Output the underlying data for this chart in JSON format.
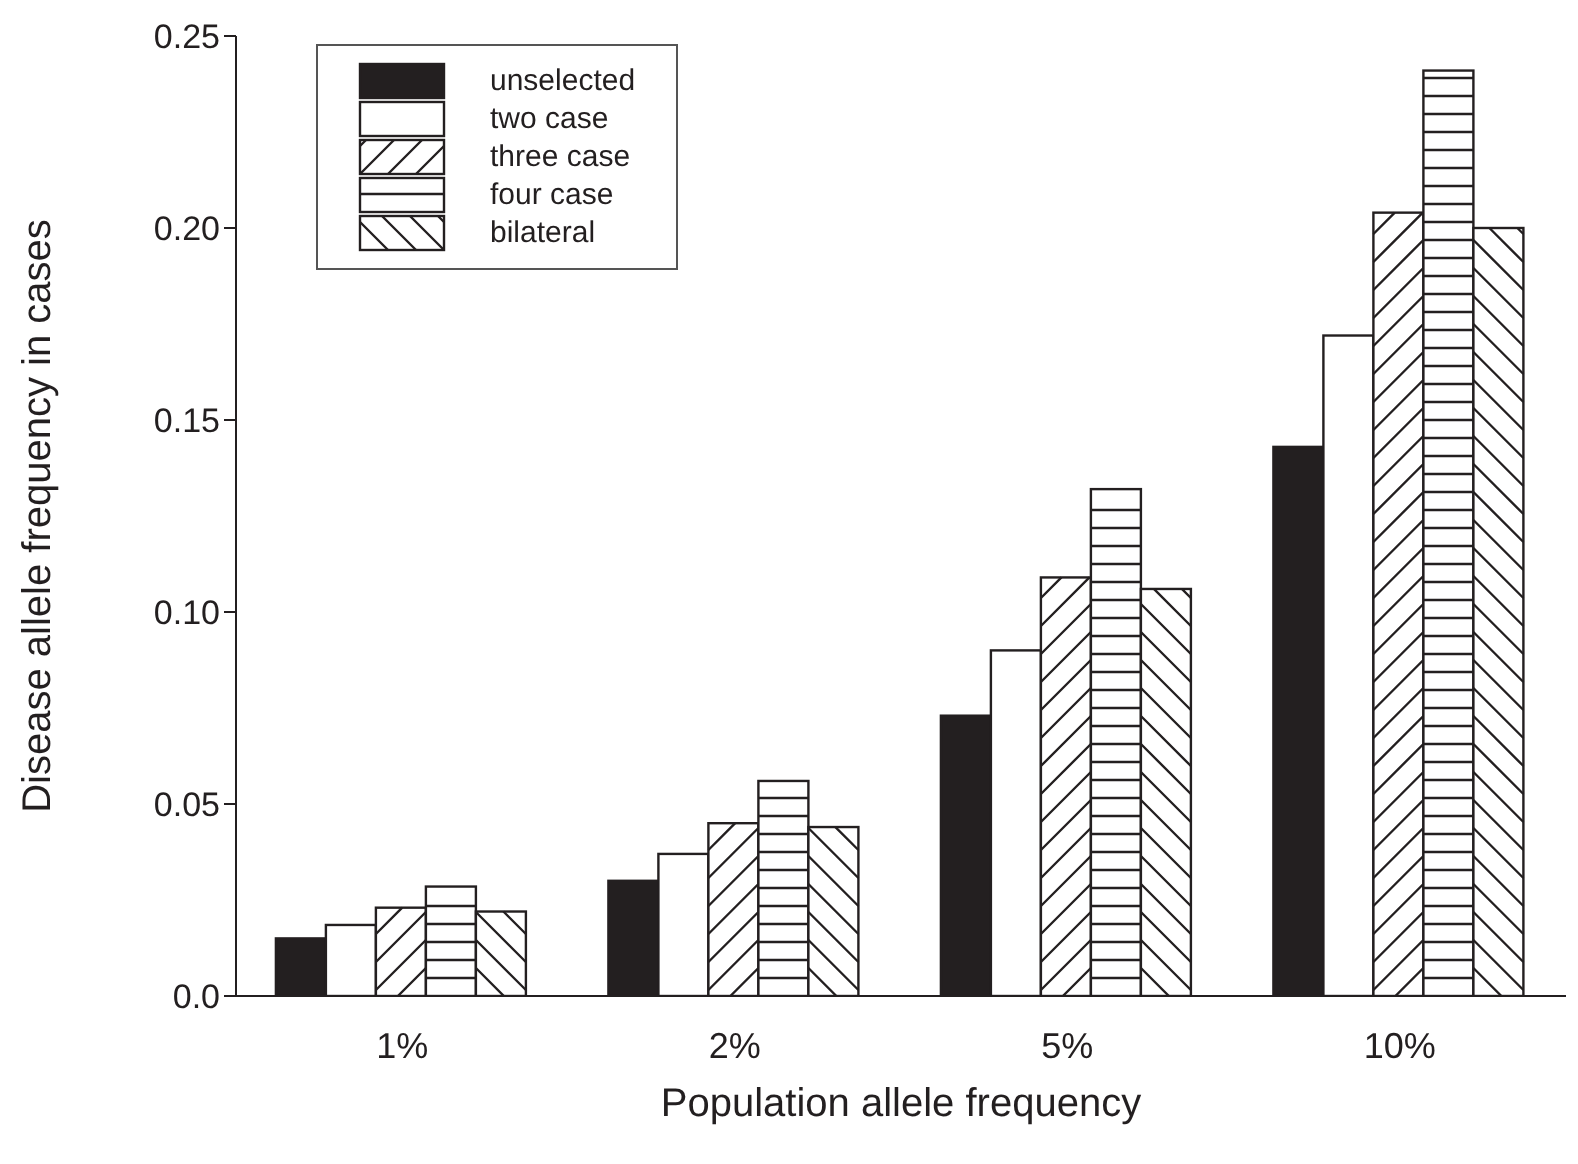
{
  "chart_data": {
    "type": "bar",
    "xlabel": "Population allele frequency",
    "ylabel": "Disease allele frequency in cases",
    "categories": [
      "1%",
      "2%",
      "5%",
      "10%"
    ],
    "series": [
      {
        "name": "unselected",
        "color": "#231f20",
        "values": [
          0.015,
          0.03,
          0.073,
          0.143
        ]
      },
      {
        "name": "two case",
        "color": "#ffffff",
        "values": [
          0.0185,
          0.037,
          0.09,
          0.172
        ]
      },
      {
        "name": "three case",
        "color": "#ffffff",
        "values": [
          0.023,
          0.045,
          0.109,
          0.204
        ]
      },
      {
        "name": "four case",
        "color": "#ffffff",
        "values": [
          0.0285,
          0.056,
          0.132,
          0.241
        ]
      },
      {
        "name": "bilateral",
        "color": "#ffffff",
        "values": [
          0.022,
          0.044,
          0.106,
          0.2
        ]
      }
    ],
    "ylim": [
      0,
      0.25
    ],
    "yticks": [
      {
        "value": 0,
        "label": "0.0"
      },
      {
        "value": 0.05,
        "label": "0.05"
      },
      {
        "value": 0.1,
        "label": "0.10"
      },
      {
        "value": 0.15,
        "label": "0.15"
      },
      {
        "value": 0.2,
        "label": "0.20"
      },
      {
        "value": 0.25,
        "label": "0.25"
      }
    ],
    "grid": false,
    "legend": "top left"
  }
}
